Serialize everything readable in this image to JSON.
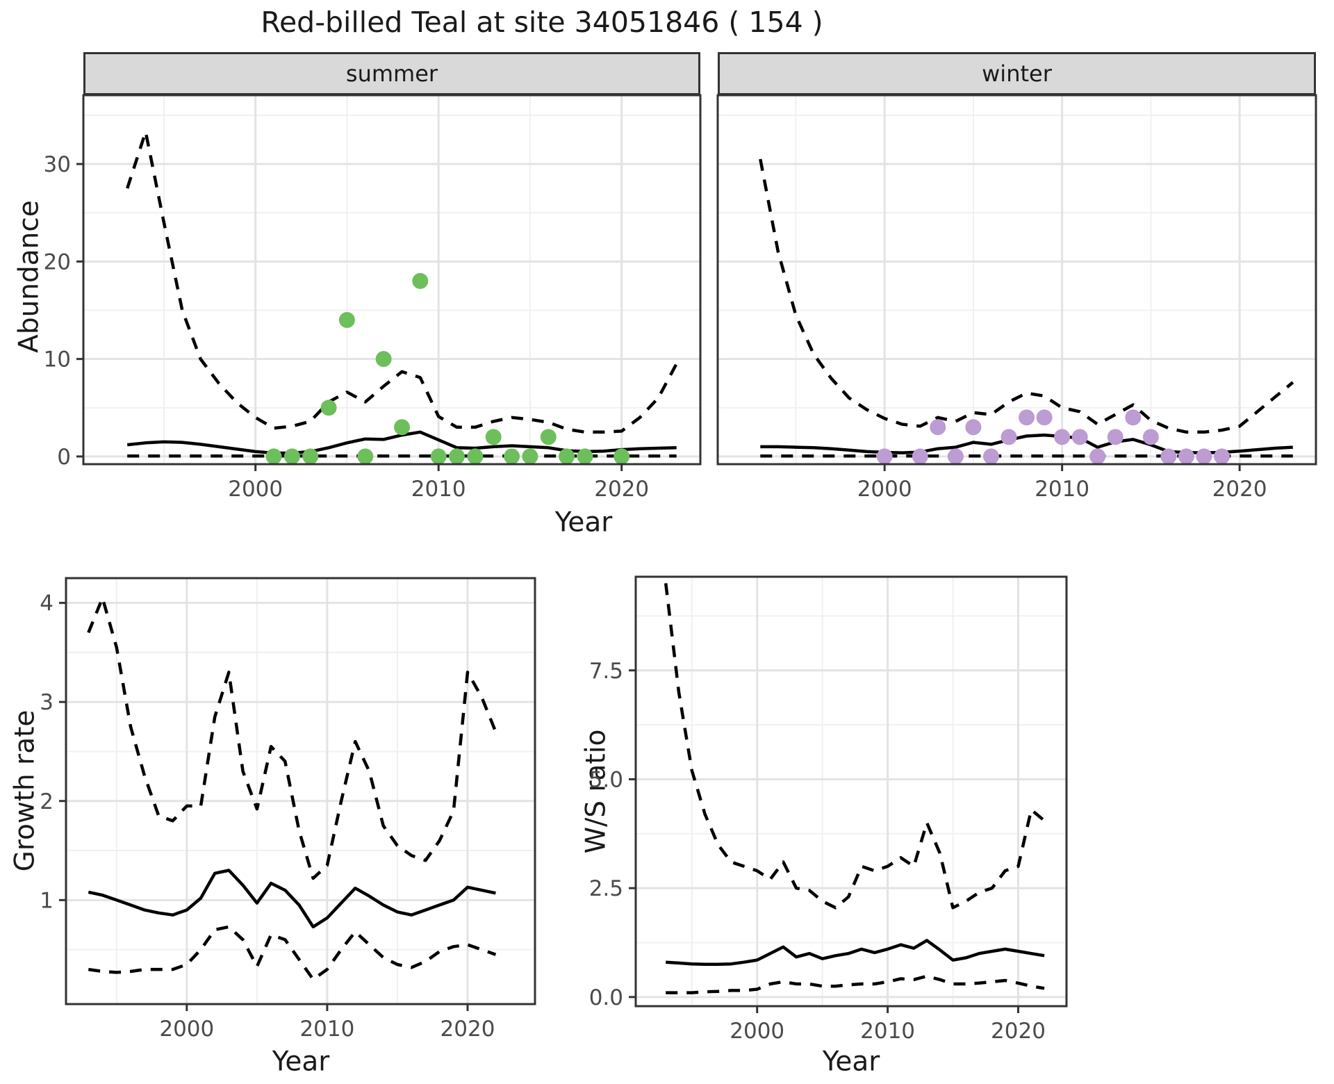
{
  "title": "Red-billed Teal at site 34051846 ( 154 )",
  "labels": {
    "abundance": "Abundance",
    "year": "Year",
    "growth_rate": "Growth rate",
    "ws_ratio": "W/S ratio"
  },
  "colors": {
    "summer_point": "#6dbf5c",
    "winter_point": "#bd9bd3",
    "line": "#000000",
    "strip_bg": "#d9d9d9",
    "grid_major": "#e3e3e3",
    "grid_minor": "#f0f0f0",
    "panel_border": "#333333",
    "tick_label": "#4a4a4a"
  },
  "chart_data": [
    {
      "id": "summer",
      "type": "line+scatter",
      "facet_label": "summer",
      "xlim": [
        1990.6,
        2024.3
      ],
      "ylim": [
        -0.79,
        37.06
      ],
      "xticks": {
        "major": [
          2000,
          2010,
          2020
        ],
        "minor": [
          1995,
          2005,
          2015
        ],
        "labels": [
          "2000",
          "2010",
          "2020"
        ]
      },
      "yticks": {
        "major": [
          0,
          10,
          20,
          30
        ],
        "minor": [
          5,
          15,
          25,
          35
        ],
        "labels": [
          "0",
          "10",
          "20",
          "30"
        ]
      },
      "series": {
        "years": [
          1993,
          1994,
          1995,
          1996,
          1997,
          1998,
          1999,
          2000,
          2001,
          2002,
          2003,
          2004,
          2005,
          2006,
          2007,
          2008,
          2009,
          2010,
          2011,
          2012,
          2013,
          2014,
          2015,
          2016,
          2017,
          2018,
          2019,
          2020,
          2021,
          2022,
          2023
        ],
        "mean": [
          1.2,
          1.4,
          1.5,
          1.45,
          1.25,
          1.0,
          0.75,
          0.5,
          0.35,
          0.35,
          0.5,
          0.9,
          1.4,
          1.8,
          1.75,
          2.2,
          2.5,
          1.7,
          0.9,
          0.85,
          1.0,
          1.1,
          1.0,
          0.9,
          0.6,
          0.5,
          0.55,
          0.7,
          0.8,
          0.85,
          0.9
        ],
        "upper": [
          27.5,
          33.3,
          24.0,
          15.0,
          10.0,
          7.5,
          5.5,
          4.0,
          2.9,
          3.1,
          3.6,
          5.6,
          6.6,
          5.6,
          7.2,
          8.7,
          8.1,
          4.1,
          3.0,
          3.0,
          3.6,
          4.0,
          3.8,
          3.5,
          2.8,
          2.5,
          2.5,
          2.6,
          4.0,
          6.0,
          9.5
        ],
        "lower": [
          0.05,
          0.05,
          0.05,
          0.05,
          0.05,
          0.05,
          0.05,
          0.05,
          0.05,
          0.05,
          0.05,
          0.05,
          0.05,
          0.05,
          0.05,
          0.05,
          0.05,
          0.05,
          0.05,
          0.05,
          0.05,
          0.05,
          0.05,
          0.05,
          0.05,
          0.05,
          0.05,
          0.05,
          0.05,
          0.05,
          0.05
        ]
      },
      "points": {
        "years": [
          2001,
          2002,
          2003,
          2004,
          2005,
          2006,
          2007,
          2008,
          2009,
          2010,
          2011,
          2012,
          2013,
          2014,
          2015,
          2016,
          2017,
          2018,
          2020
        ],
        "values": [
          0,
          0,
          0,
          5,
          14,
          0,
          10,
          3,
          18,
          0,
          0,
          0,
          2,
          0,
          0,
          2,
          0,
          0,
          0
        ],
        "color": "#6dbf5c"
      }
    },
    {
      "id": "winter",
      "type": "line+scatter",
      "facet_label": "winter",
      "xlim": [
        1990.6,
        2024.3
      ],
      "ylim": [
        -0.79,
        37.06
      ],
      "xticks": {
        "major": [
          2000,
          2010,
          2020
        ],
        "minor": [
          1995,
          2005,
          2015
        ],
        "labels": [
          "2000",
          "2010",
          "2020"
        ]
      },
      "yticks": {
        "major": [
          0,
          10,
          20,
          30
        ],
        "minor": [
          5,
          15,
          25,
          35
        ],
        "labels": []
      },
      "series": {
        "years": [
          1993,
          1994,
          1995,
          1996,
          1997,
          1998,
          1999,
          2000,
          2001,
          2002,
          2003,
          2004,
          2005,
          2006,
          2007,
          2008,
          2009,
          2010,
          2011,
          2012,
          2013,
          2014,
          2015,
          2016,
          2017,
          2018,
          2019,
          2020,
          2021,
          2022,
          2023
        ],
        "mean": [
          1.0,
          1.0,
          0.95,
          0.9,
          0.8,
          0.65,
          0.5,
          0.42,
          0.38,
          0.45,
          0.8,
          0.95,
          1.45,
          1.25,
          1.7,
          2.1,
          2.2,
          2.05,
          1.9,
          0.95,
          1.5,
          1.75,
          1.2,
          0.5,
          0.4,
          0.38,
          0.42,
          0.55,
          0.7,
          0.85,
          0.95
        ],
        "upper": [
          30.5,
          21.0,
          14.5,
          10.5,
          8.0,
          6.0,
          4.8,
          3.9,
          3.3,
          3.1,
          4.0,
          3.6,
          4.5,
          4.3,
          5.6,
          6.5,
          6.2,
          5.0,
          4.6,
          3.3,
          4.3,
          5.3,
          3.7,
          2.9,
          2.5,
          2.5,
          2.7,
          3.1,
          4.6,
          6.1,
          7.6
        ],
        "lower": [
          0.05,
          0.05,
          0.05,
          0.05,
          0.05,
          0.05,
          0.05,
          0.05,
          0.05,
          0.05,
          0.05,
          0.05,
          0.05,
          0.05,
          0.05,
          0.05,
          0.05,
          0.05,
          0.05,
          0.05,
          0.05,
          0.05,
          0.05,
          0.05,
          0.05,
          0.05,
          0.05,
          0.05,
          0.05,
          0.05,
          0.05
        ]
      },
      "points": {
        "years": [
          2000,
          2002,
          2003,
          2004,
          2005,
          2006,
          2007,
          2008,
          2009,
          2010,
          2011,
          2012,
          2013,
          2014,
          2015,
          2016,
          2017,
          2018,
          2019
        ],
        "values": [
          0,
          0,
          3,
          0,
          3,
          0,
          2,
          4,
          4,
          2,
          2,
          0,
          2,
          4,
          2,
          0,
          0,
          0,
          0
        ],
        "color": "#bd9bd3"
      }
    },
    {
      "id": "growth_rate",
      "type": "line",
      "facet_label": "",
      "xlim": [
        1991.4,
        2024.8
      ],
      "ylim": [
        -0.05,
        4.25
      ],
      "xticks": {
        "major": [
          2000,
          2010,
          2020
        ],
        "minor": [
          1995,
          2005,
          2015
        ],
        "labels": [
          "2000",
          "2010",
          "2020"
        ]
      },
      "yticks": {
        "major": [
          1,
          2,
          3,
          4
        ],
        "minor": [
          0.5,
          1.5,
          2.5,
          3.5
        ],
        "labels": [
          "1",
          "2",
          "3",
          "4"
        ]
      },
      "series": {
        "years": [
          1993,
          1994,
          1995,
          1996,
          1997,
          1998,
          1999,
          2000,
          2001,
          2002,
          2003,
          2004,
          2005,
          2006,
          2007,
          2008,
          2009,
          2010,
          2011,
          2012,
          2013,
          2014,
          2015,
          2016,
          2017,
          2018,
          2019,
          2020,
          2021,
          2022
        ],
        "mean": [
          1.08,
          1.05,
          1.0,
          0.95,
          0.9,
          0.87,
          0.85,
          0.9,
          1.02,
          1.27,
          1.3,
          1.15,
          0.97,
          1.17,
          1.1,
          0.95,
          0.73,
          0.82,
          0.97,
          1.12,
          1.04,
          0.95,
          0.88,
          0.85,
          0.9,
          0.95,
          1.0,
          1.13,
          1.1,
          1.07
        ],
        "upper": [
          3.7,
          4.05,
          3.55,
          2.75,
          2.25,
          1.85,
          1.8,
          1.95,
          1.95,
          2.85,
          3.3,
          2.3,
          1.92,
          2.55,
          2.4,
          1.7,
          1.22,
          1.35,
          2.0,
          2.6,
          2.3,
          1.75,
          1.55,
          1.45,
          1.4,
          1.6,
          1.9,
          3.3,
          3.05,
          2.7
        ],
        "lower": [
          0.3,
          0.28,
          0.27,
          0.28,
          0.3,
          0.3,
          0.3,
          0.35,
          0.5,
          0.7,
          0.73,
          0.6,
          0.33,
          0.65,
          0.6,
          0.4,
          0.2,
          0.3,
          0.5,
          0.68,
          0.55,
          0.42,
          0.35,
          0.32,
          0.38,
          0.48,
          0.53,
          0.55,
          0.5,
          0.45
        ]
      }
    },
    {
      "id": "ws_ratio",
      "type": "line",
      "facet_label": "",
      "xlim": [
        1990.7,
        2023.7
      ],
      "ylim": [
        -0.21,
        9.65
      ],
      "xticks": {
        "major": [
          2000,
          2010,
          2020
        ],
        "minor": [
          1995,
          2005,
          2015
        ],
        "labels": [
          "2000",
          "2010",
          "2020"
        ]
      },
      "yticks": {
        "major": [
          0,
          2.5,
          5,
          7.5
        ],
        "minor": [
          1.25,
          3.75,
          6.25,
          8.75
        ],
        "labels": [
          "0.0",
          "2.5",
          "5.0",
          "7.5"
        ]
      },
      "series": {
        "years": [
          1993,
          1994,
          1995,
          1996,
          1997,
          1998,
          1999,
          2000,
          2001,
          2002,
          2003,
          2004,
          2005,
          2006,
          2007,
          2008,
          2009,
          2010,
          2011,
          2012,
          2013,
          2014,
          2015,
          2016,
          2017,
          2018,
          2019,
          2020,
          2021,
          2022
        ],
        "mean": [
          0.8,
          0.78,
          0.76,
          0.75,
          0.75,
          0.76,
          0.8,
          0.85,
          1.0,
          1.15,
          0.92,
          1.0,
          0.88,
          0.95,
          1.0,
          1.1,
          1.02,
          1.1,
          1.2,
          1.12,
          1.3,
          1.08,
          0.85,
          0.9,
          1.0,
          1.05,
          1.1,
          1.05,
          1.0,
          0.95
        ],
        "upper": [
          9.5,
          7.0,
          5.2,
          4.2,
          3.5,
          3.1,
          3.0,
          2.9,
          2.7,
          3.1,
          2.5,
          2.45,
          2.2,
          2.05,
          2.3,
          3.0,
          2.9,
          3.0,
          3.2,
          3.0,
          4.0,
          3.3,
          2.05,
          2.2,
          2.4,
          2.5,
          2.9,
          3.0,
          4.3,
          4.05
        ],
        "lower": [
          0.1,
          0.1,
          0.1,
          0.12,
          0.13,
          0.15,
          0.15,
          0.18,
          0.3,
          0.35,
          0.3,
          0.3,
          0.25,
          0.25,
          0.28,
          0.3,
          0.3,
          0.35,
          0.42,
          0.4,
          0.48,
          0.4,
          0.3,
          0.3,
          0.32,
          0.35,
          0.38,
          0.32,
          0.25,
          0.2
        ]
      }
    }
  ]
}
